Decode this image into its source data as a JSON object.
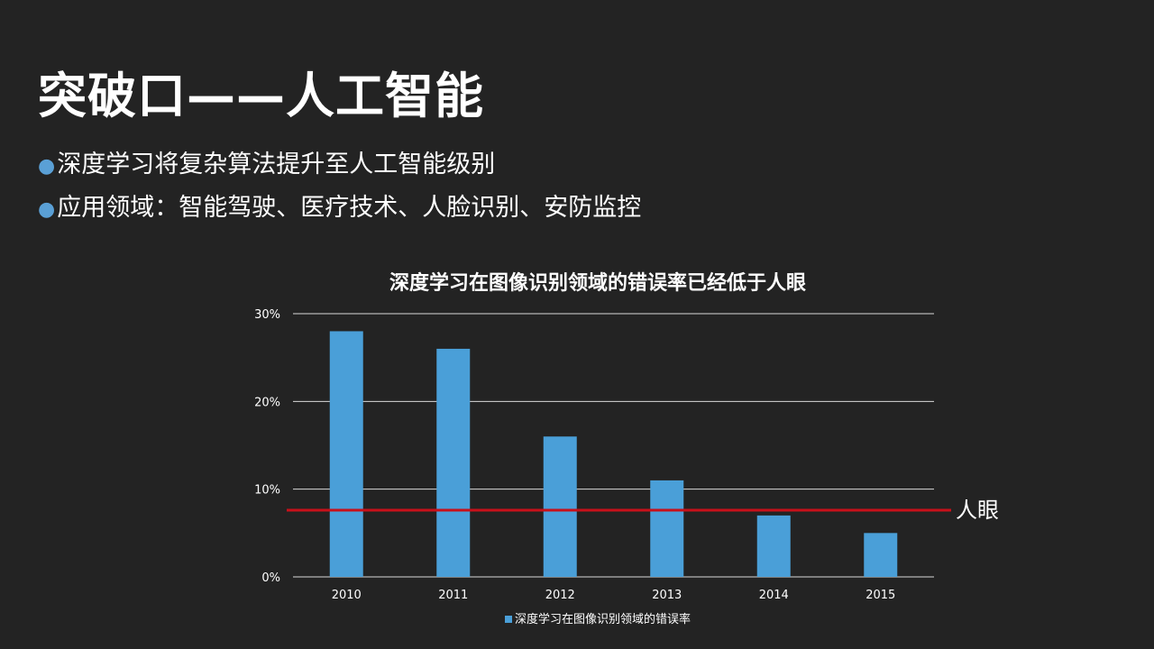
{
  "slide": {
    "title": "突破口——人工智能",
    "bullets": [
      "深度学习将复杂算法提升至人工智能级别",
      "应用领域：智能驾驶、医疗技术、人脸识别、安防监控"
    ],
    "bullet_glyph": "●",
    "bullet_color": "#5aa0d6"
  },
  "chart_data": {
    "type": "bar",
    "title": "深度学习在图像识别领域的错误率已经低于人眼",
    "categories": [
      "2010",
      "2011",
      "2012",
      "2013",
      "2014",
      "2015"
    ],
    "series": [
      {
        "name": "深度学习在图像识别领域的错误率",
        "values": [
          0.28,
          0.26,
          0.16,
          0.11,
          0.07,
          0.05
        ],
        "color": "#4a9fd8"
      }
    ],
    "ylim": [
      0,
      0.3
    ],
    "yticks": [
      0,
      0.1,
      0.2,
      0.3
    ],
    "ytick_labels": [
      "0%",
      "10%",
      "20%",
      "30%"
    ],
    "grid": true,
    "legend_position": "bottom",
    "reference_line": {
      "label": "人眼",
      "value": 0.076,
      "color": "#c8101a"
    }
  }
}
